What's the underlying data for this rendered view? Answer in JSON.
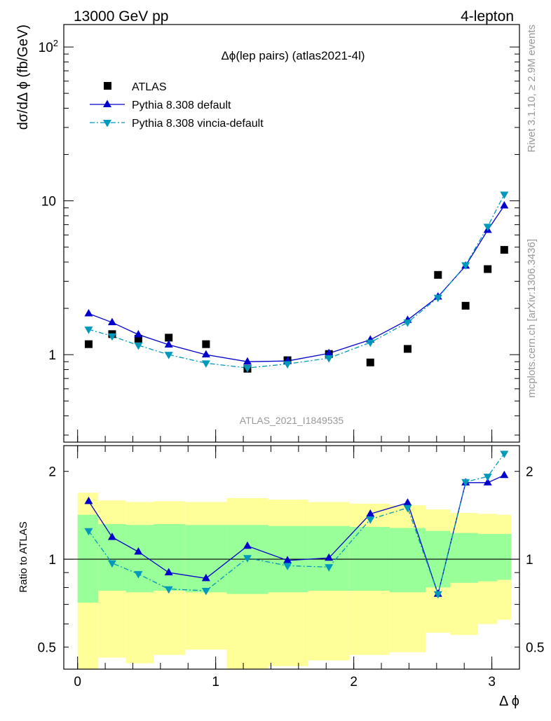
{
  "header": {
    "left": "13000 GeV pp",
    "right": "4-lepton"
  },
  "side_text": {
    "rivet": "Rivet 3.1.10, ≥ 2.9M events",
    "mcplots": "mcplots.cern.ch [arXiv:1306.3436]"
  },
  "colors": {
    "data": "#000000",
    "pythia_default": "#0000cc",
    "pythia_vincia": "#0099bb",
    "band_inner": "#99ff99",
    "band_outer": "#ffff99",
    "watermark": "#999999"
  },
  "chart_data": [
    {
      "type": "scatter",
      "title": "Δϕ(lep pairs) (atlas2021-4l)",
      "ylabel": "dσ/dΔ ϕ (fb/GeV)",
      "xlabel": "",
      "yscale": "log",
      "xlim": [
        -0.1,
        3.2
      ],
      "ylim": [
        0.27,
        140
      ],
      "y_ticks": [
        {
          "value": 1,
          "label": "1"
        },
        {
          "value": 10,
          "label": "10"
        },
        {
          "value": 100,
          "label": "10²"
        }
      ],
      "watermark": "ATLAS_2021_I1849535",
      "legend": "top-left",
      "series": [
        {
          "name": "ATLAS",
          "marker": "square",
          "color": "#000000",
          "x": [
            0.08,
            0.25,
            0.44,
            0.66,
            0.93,
            1.23,
            1.52,
            1.82,
            2.12,
            2.39,
            2.61,
            2.81,
            2.97,
            3.09
          ],
          "y": [
            1.17,
            1.36,
            1.27,
            1.29,
            1.17,
            0.81,
            0.92,
            1.01,
            0.89,
            1.09,
            3.3,
            2.08,
            3.6,
            4.8
          ]
        },
        {
          "name": "Pythia 8.308 default",
          "marker": "triangle-up",
          "color": "#0000cc",
          "line": "solid",
          "x": [
            0.08,
            0.25,
            0.44,
            0.66,
            0.93,
            1.23,
            1.52,
            1.82,
            2.12,
            2.39,
            2.61,
            2.81,
            2.97,
            3.09
          ],
          "y": [
            1.85,
            1.62,
            1.35,
            1.16,
            1.0,
            0.9,
            0.91,
            1.02,
            1.25,
            1.68,
            2.38,
            3.78,
            6.45,
            9.3
          ]
        },
        {
          "name": "Pythia 8.308 vincia-default",
          "marker": "triangle-down",
          "color": "#0099bb",
          "line": "dashdot",
          "x": [
            0.08,
            0.25,
            0.44,
            0.66,
            0.93,
            1.23,
            1.52,
            1.82,
            2.12,
            2.39,
            2.61,
            2.81,
            2.97,
            3.09
          ],
          "y": [
            1.46,
            1.32,
            1.15,
            1.0,
            0.88,
            0.82,
            0.87,
            0.95,
            1.2,
            1.62,
            2.35,
            3.82,
            6.8,
            11.0
          ]
        }
      ]
    },
    {
      "type": "line",
      "ylabel": "Ratio to ATLAS",
      "xlabel": "Δ ϕ",
      "yscale": "log",
      "xlim": [
        -0.1,
        3.2
      ],
      "ylim": [
        0.42,
        2.45
      ],
      "y_ticks": [
        {
          "value": 0.5,
          "label": "0.5"
        },
        {
          "value": 1,
          "label": "1"
        },
        {
          "value": 2,
          "label": "2"
        }
      ],
      "x_ticks": [
        {
          "value": 0,
          "label": "0"
        },
        {
          "value": 1,
          "label": "1"
        },
        {
          "value": 2,
          "label": "2"
        },
        {
          "value": 3,
          "label": "3"
        }
      ],
      "bins": [
        [
          0.0,
          0.15
        ],
        [
          0.15,
          0.35
        ],
        [
          0.35,
          0.55
        ],
        [
          0.55,
          0.78
        ],
        [
          0.78,
          1.08
        ],
        [
          1.08,
          1.38
        ],
        [
          1.38,
          1.67
        ],
        [
          1.67,
          1.97
        ],
        [
          1.97,
          2.26
        ],
        [
          2.26,
          2.52
        ],
        [
          2.52,
          2.7
        ],
        [
          2.7,
          2.9
        ],
        [
          2.9,
          3.04
        ],
        [
          3.04,
          3.14
        ]
      ],
      "band_inner": {
        "lo": [
          0.71,
          0.78,
          0.77,
          0.78,
          0.77,
          0.76,
          0.77,
          0.78,
          0.78,
          0.77,
          0.8,
          0.83,
          0.84,
          0.85
        ],
        "hi": [
          1.42,
          1.32,
          1.31,
          1.32,
          1.31,
          1.31,
          1.3,
          1.3,
          1.29,
          1.28,
          1.25,
          1.23,
          1.22,
          1.22
        ]
      },
      "band_outer": {
        "lo": [
          0.3,
          0.46,
          0.44,
          0.47,
          0.49,
          0.3,
          0.43,
          0.45,
          0.47,
          0.48,
          0.56,
          0.55,
          0.6,
          0.62
        ],
        "hi": [
          1.69,
          1.59,
          1.57,
          1.58,
          1.57,
          1.62,
          1.6,
          1.57,
          1.55,
          1.53,
          1.48,
          1.44,
          1.43,
          1.42
        ]
      },
      "series": [
        {
          "name": "Pythia 8.308 default",
          "marker": "triangle-up",
          "color": "#0000cc",
          "line": "solid",
          "x": [
            0.08,
            0.25,
            0.44,
            0.66,
            0.93,
            1.23,
            1.52,
            1.82,
            2.12,
            2.39,
            2.61,
            2.81,
            2.97,
            3.09
          ],
          "y": [
            1.58,
            1.19,
            1.06,
            0.9,
            0.86,
            1.11,
            0.99,
            1.01,
            1.43,
            1.56,
            0.76,
            1.83,
            1.83,
            1.94
          ]
        },
        {
          "name": "Pythia 8.308 vincia-default",
          "marker": "triangle-down",
          "color": "#0099bb",
          "line": "dashdot",
          "x": [
            0.08,
            0.25,
            0.44,
            0.66,
            0.93,
            1.23,
            1.52,
            1.82,
            2.12,
            2.39,
            2.61,
            2.81,
            2.97,
            3.09
          ],
          "y": [
            1.25,
            0.97,
            0.89,
            0.79,
            0.78,
            1.01,
            0.95,
            0.94,
            1.37,
            1.5,
            0.76,
            1.84,
            1.92,
            2.3
          ]
        }
      ]
    }
  ]
}
